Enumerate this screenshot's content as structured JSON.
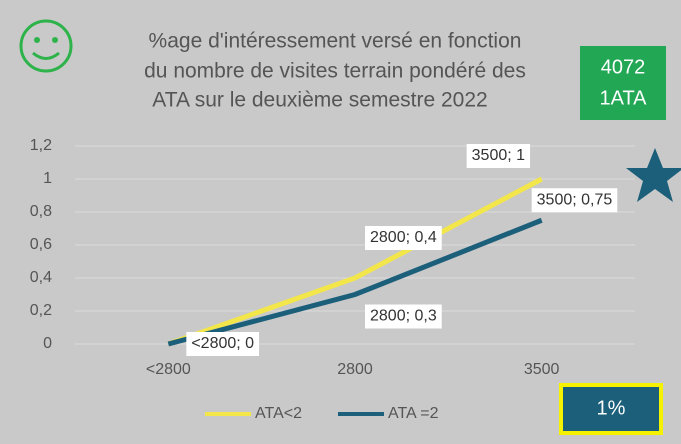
{
  "chart_data": {
    "type": "line",
    "title": [
      "%age d'intéressement versé en fonction",
      "du nombre de visites terrain pondéré des",
      "ATA sur le deuxième semestre 2022"
    ],
    "categories": [
      "<2800",
      "2800",
      "3500"
    ],
    "series": [
      {
        "name": "ATA<2",
        "color": "#f2e64a",
        "values": [
          0,
          0.4,
          1
        ],
        "value_labels": [
          "<2800; 0",
          "2800; 0,4",
          "3500; 1"
        ]
      },
      {
        "name": "ATA =2",
        "color": "#1b5f7a",
        "values": [
          0,
          0.3,
          0.75
        ],
        "value_labels": [
          null,
          "2800; 0,3",
          "3500; 0,75"
        ]
      }
    ],
    "ylim": [
      0,
      1.2
    ],
    "yticks": [
      0,
      {
        "value": 0.2,
        "label": "0,2"
      },
      {
        "value": 0.4,
        "label": "0,4"
      },
      {
        "value": 0.6,
        "label": "0,6"
      },
      {
        "value": 0.8,
        "label": "0,8"
      },
      1,
      {
        "value": 1.2,
        "label": "1,2"
      }
    ],
    "grid": true,
    "annotations": {
      "badge": [
        "4072",
        "1ATA"
      ],
      "rate": "1%"
    }
  }
}
